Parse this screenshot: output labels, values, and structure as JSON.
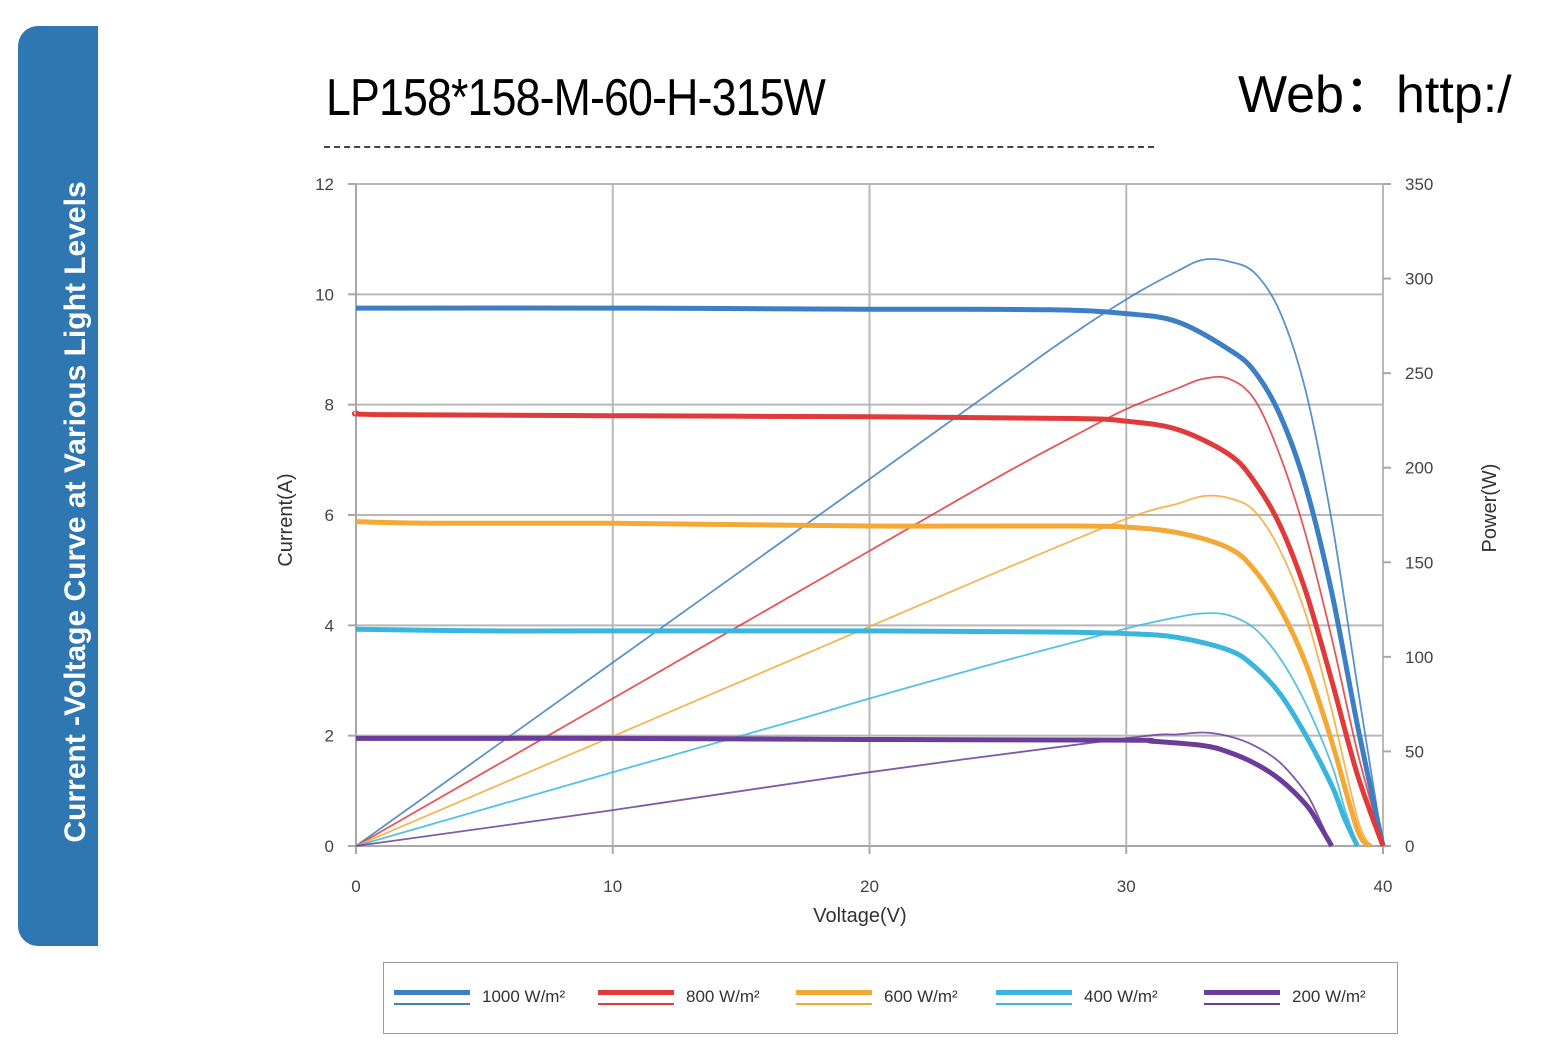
{
  "side_tab": {
    "text": "Current -Voltage Curve at Various Light Levels"
  },
  "header": {
    "model": "LP158*158-M-60-H-315W",
    "web": "Web：http:/"
  },
  "chart_data": {
    "type": "line",
    "xlabel": "Voltage(V)",
    "ylabel": "Current(A)",
    "y2label": "Power(W)",
    "xlim": [
      0,
      40
    ],
    "ylim": [
      0,
      12
    ],
    "y2lim": [
      0,
      350
    ],
    "xticks": [
      0,
      10,
      20,
      30,
      40
    ],
    "yticks": [
      0,
      2,
      4,
      6,
      8,
      10,
      12
    ],
    "y2ticks": [
      0,
      50,
      100,
      150,
      200,
      250,
      300,
      350
    ],
    "grid": true,
    "legend_position": "bottom",
    "series": [
      {
        "name": "1000 W/m²",
        "color": "#3c7fc4",
        "iv": [
          [
            0,
            9.75
          ],
          [
            10,
            9.75
          ],
          [
            20,
            9.73
          ],
          [
            27,
            9.72
          ],
          [
            30,
            9.65
          ],
          [
            32,
            9.5
          ],
          [
            34,
            9.0
          ],
          [
            35,
            8.6
          ],
          [
            36,
            7.8
          ],
          [
            37,
            6.5
          ],
          [
            38,
            4.6
          ],
          [
            39,
            2.2
          ],
          [
            40,
            0
          ]
        ],
        "pv": [
          [
            0,
            0
          ],
          [
            10,
            97
          ],
          [
            20,
            194
          ],
          [
            27,
            262
          ],
          [
            30,
            289
          ],
          [
            32,
            304
          ],
          [
            33,
            310
          ],
          [
            34,
            309
          ],
          [
            35,
            303
          ],
          [
            36,
            282
          ],
          [
            37,
            240
          ],
          [
            38,
            172
          ],
          [
            39,
            85
          ],
          [
            40,
            0
          ]
        ]
      },
      {
        "name": "800 W/m²",
        "color": "#e03a3a",
        "iv": [
          [
            0,
            7.85
          ],
          [
            1,
            7.82
          ],
          [
            10,
            7.8
          ],
          [
            20,
            7.78
          ],
          [
            28,
            7.75
          ],
          [
            30,
            7.7
          ],
          [
            32,
            7.55
          ],
          [
            34,
            7.1
          ],
          [
            35,
            6.6
          ],
          [
            36,
            5.8
          ],
          [
            37,
            4.6
          ],
          [
            38,
            3.0
          ],
          [
            39,
            1.3
          ],
          [
            40,
            0
          ]
        ],
        "pv": [
          [
            0,
            0
          ],
          [
            10,
            78
          ],
          [
            15,
            117
          ],
          [
            20,
            156
          ],
          [
            25,
            195
          ],
          [
            28,
            217
          ],
          [
            30,
            231
          ],
          [
            32,
            242
          ],
          [
            33,
            247
          ],
          [
            34,
            247
          ],
          [
            35,
            236
          ],
          [
            36,
            206
          ],
          [
            37,
            164
          ],
          [
            38,
            110
          ],
          [
            39,
            50
          ],
          [
            40,
            0
          ]
        ]
      },
      {
        "name": "600 W/m²",
        "color": "#f4a836",
        "iv": [
          [
            0,
            5.88
          ],
          [
            3,
            5.85
          ],
          [
            10,
            5.85
          ],
          [
            20,
            5.8
          ],
          [
            28,
            5.8
          ],
          [
            30,
            5.78
          ],
          [
            32,
            5.68
          ],
          [
            34,
            5.4
          ],
          [
            35,
            5.0
          ],
          [
            36,
            4.3
          ],
          [
            37,
            3.3
          ],
          [
            38,
            1.9
          ],
          [
            39,
            0.3
          ],
          [
            39.5,
            0
          ]
        ],
        "pv": [
          [
            0,
            0
          ],
          [
            10,
            58
          ],
          [
            20,
            116
          ],
          [
            25,
            145
          ],
          [
            30,
            173
          ],
          [
            32,
            181
          ],
          [
            33,
            185
          ],
          [
            34,
            184
          ],
          [
            35,
            177
          ],
          [
            36,
            156
          ],
          [
            37,
            122
          ],
          [
            38,
            72
          ],
          [
            39,
            15
          ],
          [
            39.5,
            0
          ]
        ]
      },
      {
        "name": "400 W/m²",
        "color": "#3ab6de",
        "iv": [
          [
            0,
            3.93
          ],
          [
            5,
            3.9
          ],
          [
            10,
            3.9
          ],
          [
            20,
            3.9
          ],
          [
            27,
            3.88
          ],
          [
            30,
            3.85
          ],
          [
            32,
            3.78
          ],
          [
            34,
            3.55
          ],
          [
            35,
            3.25
          ],
          [
            36,
            2.75
          ],
          [
            37,
            2.0
          ],
          [
            38,
            1.1
          ],
          [
            38.5,
            0.5
          ],
          [
            39,
            0
          ]
        ],
        "pv": [
          [
            0,
            0
          ],
          [
            10,
            39
          ],
          [
            17,
            66
          ],
          [
            20,
            78
          ],
          [
            25,
            97
          ],
          [
            30,
            115
          ],
          [
            32,
            121
          ],
          [
            33,
            123
          ],
          [
            34,
            122
          ],
          [
            35,
            115
          ],
          [
            36,
            99
          ],
          [
            37,
            75
          ],
          [
            38,
            43
          ],
          [
            38.5,
            20
          ],
          [
            39,
            0
          ]
        ]
      },
      {
        "name": "200 W/m²",
        "color": "#6a3d98",
        "iv": [
          [
            0,
            1.95
          ],
          [
            10,
            1.95
          ],
          [
            20,
            1.93
          ],
          [
            30,
            1.92
          ],
          [
            31,
            1.9
          ],
          [
            33,
            1.82
          ],
          [
            34,
            1.7
          ],
          [
            35,
            1.5
          ],
          [
            36,
            1.2
          ],
          [
            37,
            0.75
          ],
          [
            37.5,
            0.4
          ],
          [
            38,
            0
          ]
        ],
        "pv": [
          [
            0,
            0
          ],
          [
            10,
            19
          ],
          [
            20,
            39
          ],
          [
            30,
            57
          ],
          [
            32,
            59
          ],
          [
            33,
            60
          ],
          [
            34,
            58
          ],
          [
            35,
            53
          ],
          [
            36,
            44
          ],
          [
            37,
            28
          ],
          [
            37.5,
            15
          ],
          [
            38,
            0
          ]
        ]
      }
    ]
  }
}
